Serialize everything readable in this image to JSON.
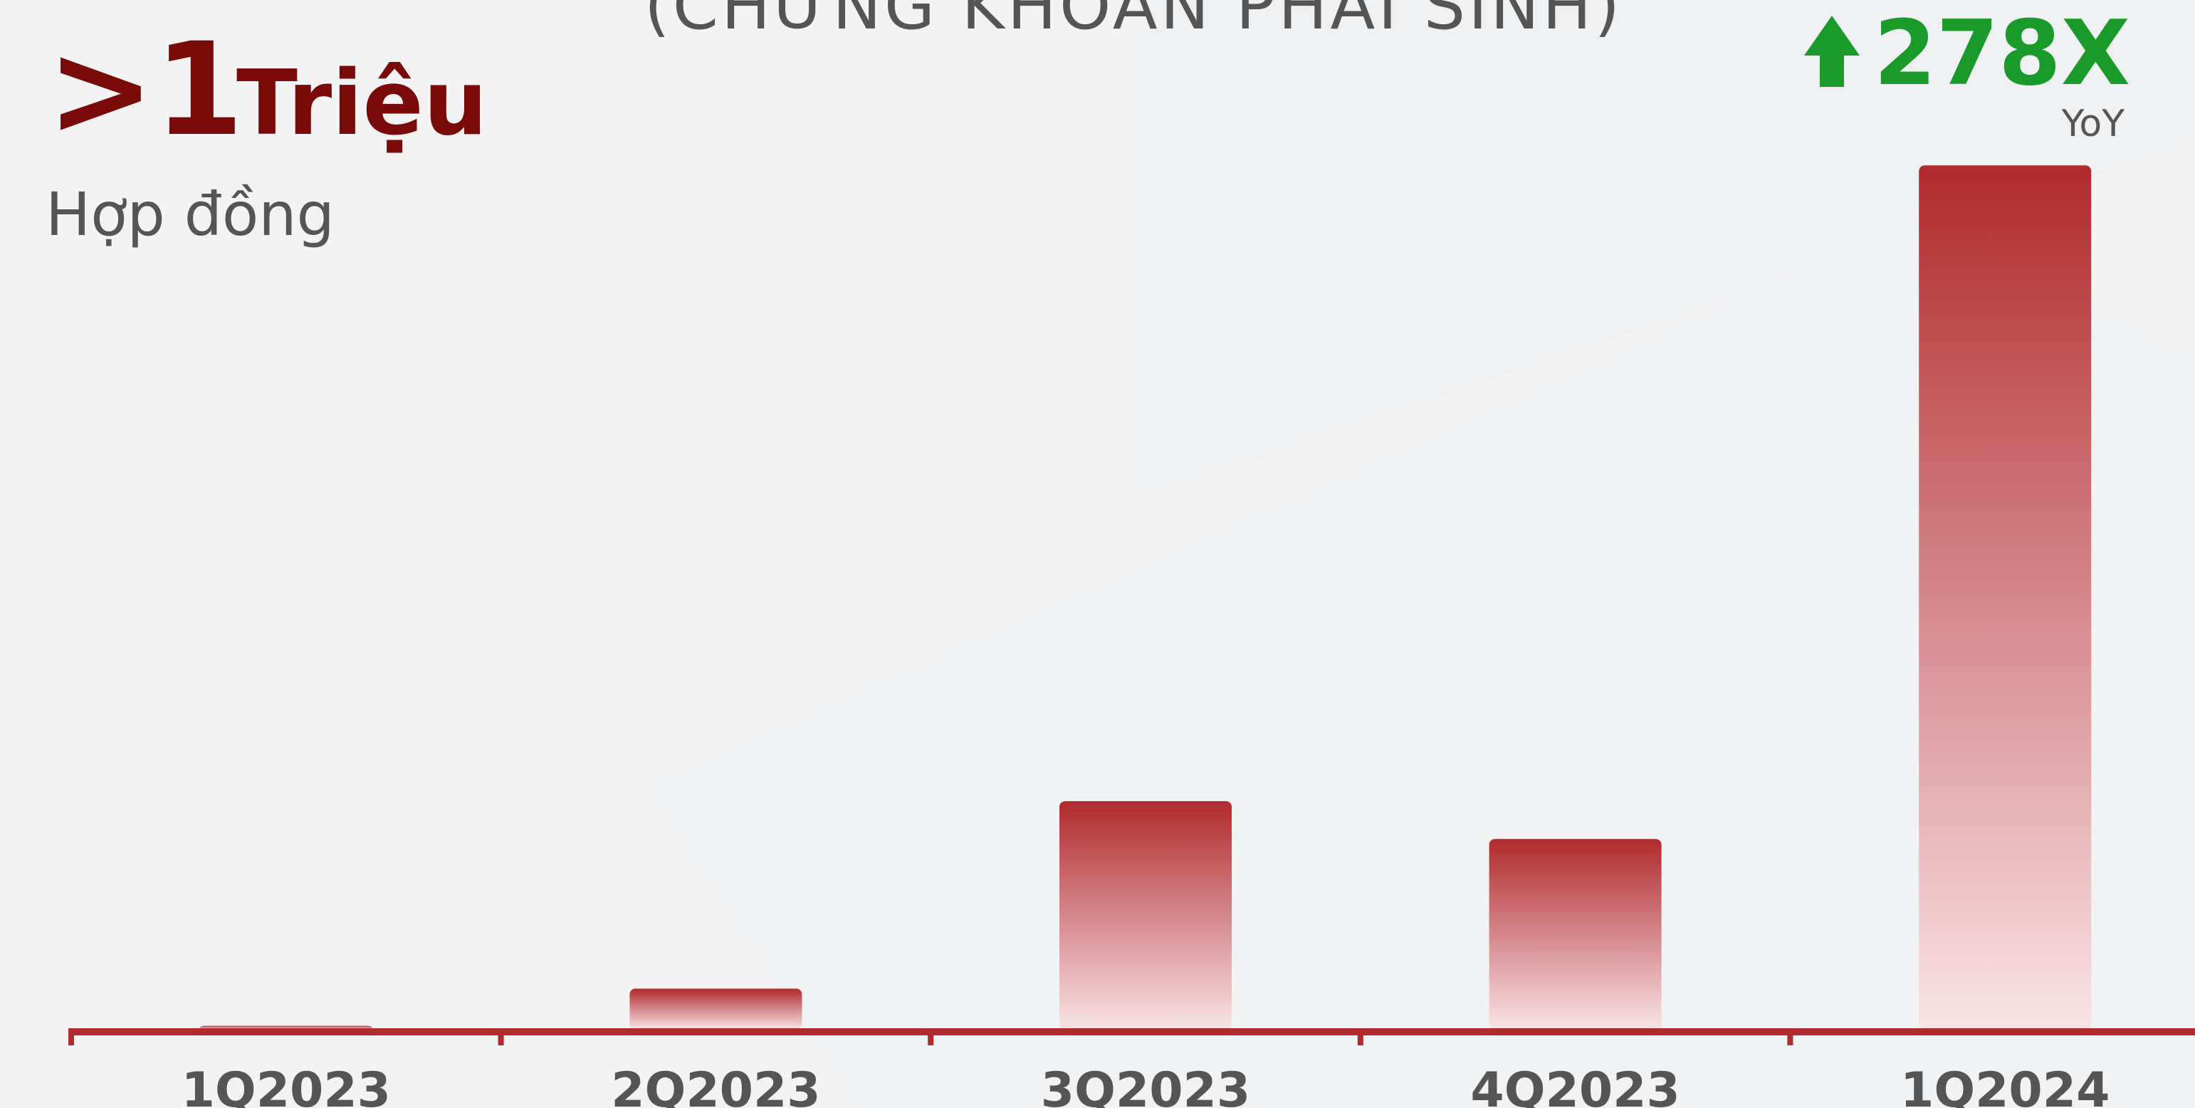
{
  "chart_data": {
    "type": "bar",
    "title": "(CHỨNG KHOÁN PHÁI SINH)",
    "headline": ">1",
    "headline_unit": "Triệu",
    "subtitle": "Hợp đồng",
    "growth": "278X",
    "growth_label": "YoY",
    "categories": [
      "1Q2023",
      "2Q2023",
      "3Q2023",
      "4Q2023",
      "1Q2024"
    ],
    "values": [
      3800,
      49000,
      277000,
      231000,
      1050000
    ],
    "color": "#b02a2e",
    "ylim": [
      0,
      1200000
    ]
  }
}
